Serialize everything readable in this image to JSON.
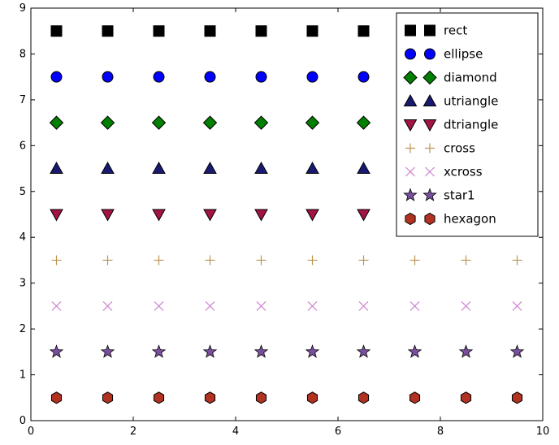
{
  "figure": {
    "background": "#ffffff",
    "frame_color": "#000000",
    "tick_label_color": "#000000"
  },
  "chart_data": {
    "type": "scatter",
    "title": "",
    "xlabel": "",
    "ylabel": "",
    "xlim": [
      0,
      10
    ],
    "ylim": [
      0,
      9
    ],
    "xticks": [
      0,
      2,
      4,
      6,
      8,
      10
    ],
    "yticks": [
      0,
      1,
      2,
      3,
      4,
      5,
      6,
      7,
      8,
      9
    ],
    "grid": false,
    "legend": {
      "position": "upper right",
      "border_color": "#000000",
      "background": "#ffffff",
      "markers_per_entry": 2
    },
    "series": [
      {
        "name": "rect",
        "marker": "square",
        "color": "#000000",
        "edge_color": "#000000",
        "y": 8.5,
        "x": [
          0.5,
          1.5,
          2.5,
          3.5,
          4.5,
          5.5,
          6.5
        ]
      },
      {
        "name": "ellipse",
        "marker": "circle",
        "color": "#0000ff",
        "edge_color": "#000000",
        "y": 7.5,
        "x": [
          0.5,
          1.5,
          2.5,
          3.5,
          4.5,
          5.5,
          6.5
        ]
      },
      {
        "name": "diamond",
        "marker": "diamond",
        "color": "#007f00",
        "edge_color": "#000000",
        "y": 6.5,
        "x": [
          0.5,
          1.5,
          2.5,
          3.5,
          4.5,
          5.5,
          6.5
        ]
      },
      {
        "name": "utriangle",
        "marker": "triangle-up",
        "color": "#191970",
        "edge_color": "#000000",
        "y": 5.5,
        "x": [
          0.5,
          1.5,
          2.5,
          3.5,
          4.5,
          5.5,
          6.5
        ]
      },
      {
        "name": "dtriangle",
        "marker": "triangle-down",
        "color": "#a21441",
        "edge_color": "#000000",
        "y": 4.5,
        "x": [
          0.5,
          1.5,
          2.5,
          3.5,
          4.5,
          5.5,
          6.5
        ]
      },
      {
        "name": "cross",
        "marker": "plus",
        "color": "#bc9454",
        "edge_color": "#bc9454",
        "y": 3.5,
        "x": [
          0.5,
          1.5,
          2.5,
          3.5,
          4.5,
          5.5,
          6.5,
          7.5,
          8.5,
          9.5
        ]
      },
      {
        "name": "xcross",
        "marker": "x",
        "color": "#cc85cc",
        "edge_color": "#cc85cc",
        "y": 2.5,
        "x": [
          0.5,
          1.5,
          2.5,
          3.5,
          4.5,
          5.5,
          6.5,
          7.5,
          8.5,
          9.5
        ]
      },
      {
        "name": "star1",
        "marker": "star",
        "color": "#7a4fa0",
        "edge_color": "#000000",
        "y": 1.5,
        "x": [
          0.5,
          1.5,
          2.5,
          3.5,
          4.5,
          5.5,
          6.5,
          7.5,
          8.5,
          9.5
        ]
      },
      {
        "name": "hexagon",
        "marker": "hexagon",
        "color": "#b23222",
        "edge_color": "#000000",
        "y": 0.5,
        "x": [
          0.5,
          1.5,
          2.5,
          3.5,
          4.5,
          5.5,
          6.5,
          7.5,
          8.5,
          9.5
        ]
      }
    ]
  }
}
